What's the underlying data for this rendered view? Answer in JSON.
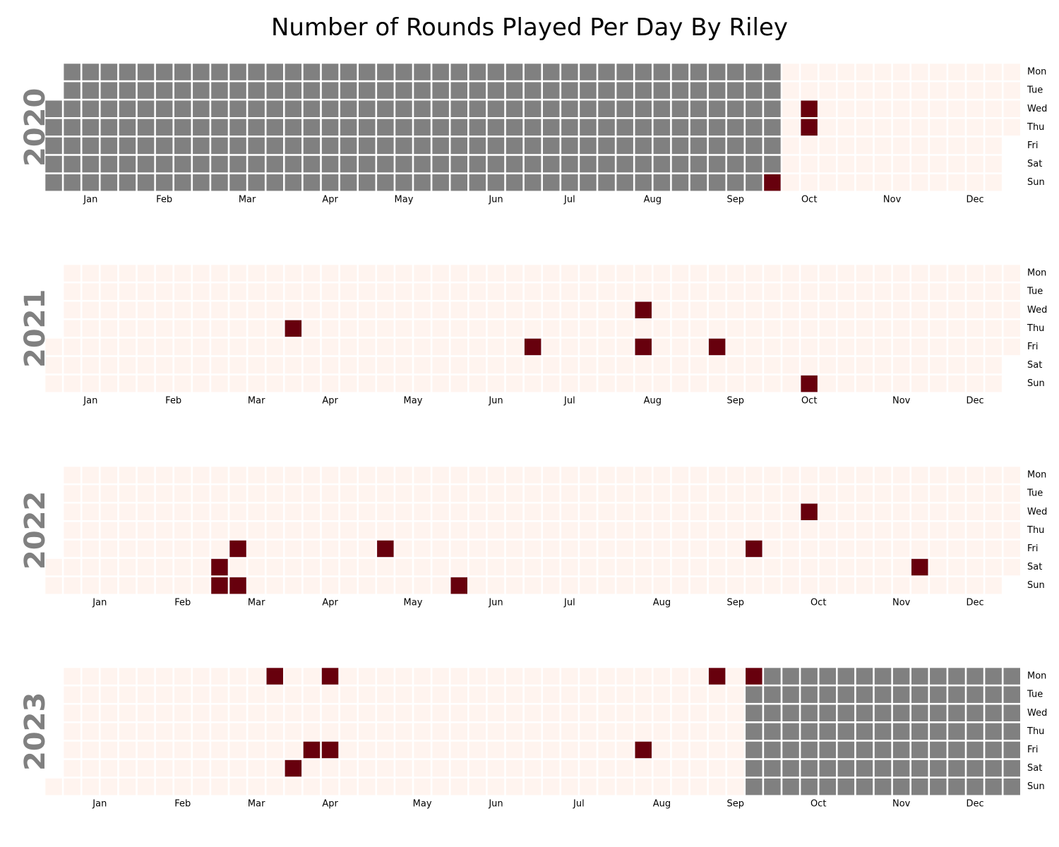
{
  "title": "Number of Rounds Played Per Day By Riley",
  "colors": {
    "empty": "#fff4ef",
    "played": "#67000d",
    "no_data": "#808080",
    "cell_border": "#ffffff"
  },
  "chart_data": {
    "type": "heatmap",
    "title": "Number of Rounds Played Per Day By Riley",
    "weekday_labels": [
      "Mon",
      "Tue",
      "Wed",
      "Thu",
      "Fri",
      "Sat",
      "Sun"
    ],
    "month_labels": [
      "Jan",
      "Feb",
      "Mar",
      "Apr",
      "May",
      "Jun",
      "Jul",
      "Aug",
      "Sep",
      "Oct",
      "Nov",
      "Dec"
    ],
    "data_range": [
      "2020-10-04",
      "2023-09-18"
    ],
    "played_dates": [
      "2020-10-04",
      "2020-10-14",
      "2020-10-15",
      "2021-04-01",
      "2021-07-02",
      "2021-08-11",
      "2021-08-13",
      "2021-09-10",
      "2021-10-17",
      "2022-03-05",
      "2022-03-06",
      "2022-03-11",
      "2022-03-13",
      "2022-05-06",
      "2022-06-05",
      "2022-09-23",
      "2022-10-12",
      "2022-11-26",
      "2023-03-20",
      "2023-04-01",
      "2023-04-07",
      "2023-04-10",
      "2023-04-14",
      "2023-08-11",
      "2023-09-04",
      "2023-09-18"
    ],
    "years": [
      {
        "year": "2020",
        "month_labels": [
          "Jan",
          "Feb",
          "Mar",
          "Apr",
          "May",
          "Jun",
          "Jul",
          "Aug",
          "Sep",
          "Oct",
          "Nov",
          "Dec"
        ]
      },
      {
        "year": "2021",
        "month_labels": [
          "Jan",
          "Feb",
          "Mar",
          "Apr",
          "May",
          "Jun",
          "Jul",
          "Aug",
          "Sep",
          "Oct",
          "Nov",
          "Dec"
        ]
      },
      {
        "year": "2022",
        "month_labels": [
          "Jan",
          "Feb",
          "Mar",
          "Apr",
          "May",
          "Jun",
          "Jul",
          "Aug",
          "Sep",
          "Oct",
          "Nov",
          "Dec"
        ]
      },
      {
        "year": "2023",
        "month_labels": [
          "Jan",
          "Feb",
          "Mar",
          "Apr",
          "May",
          "Jun",
          "Jul",
          "Aug",
          "Sep",
          "Oct",
          "Nov",
          "Dec"
        ]
      }
    ]
  }
}
